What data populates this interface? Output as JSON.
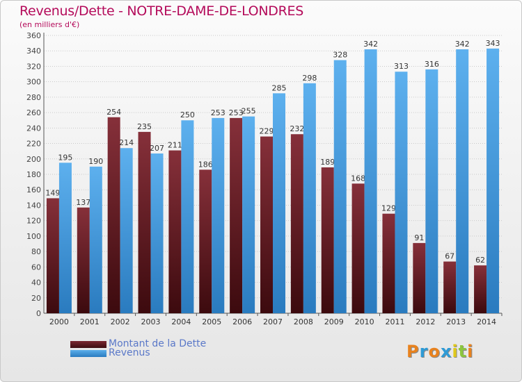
{
  "chart_data": {
    "type": "bar",
    "title": "Revenus/Dette - NOTRE-DAME-DE-LONDRES",
    "subtitle": "(en milliers d'€)",
    "categories": [
      "2000",
      "2001",
      "2002",
      "2003",
      "2004",
      "2005",
      "2006",
      "2007",
      "2008",
      "2009",
      "2010",
      "2011",
      "2012",
      "2013",
      "2014"
    ],
    "series": [
      {
        "name": "Montant de la Dette",
        "color": "#6e1e26",
        "values": [
          149,
          137,
          254,
          235,
          211,
          186,
          253,
          229,
          232,
          189,
          168,
          129,
          91,
          67,
          62
        ]
      },
      {
        "name": "Revenus",
        "color": "#4da3e6",
        "values": [
          195,
          190,
          214,
          207,
          250,
          253,
          255,
          285,
          298,
          328,
          342,
          313,
          316,
          342,
          343
        ]
      }
    ],
    "ylim": [
      0,
      360
    ],
    "ytick_step": 20,
    "grid": true,
    "legend_position": "bottom-left"
  },
  "logo": {
    "letters": [
      "P",
      "r",
      "o",
      "x",
      "i",
      "t",
      "i"
    ],
    "colors": [
      "#e8821e",
      "#2f9bd6",
      "#e8821e",
      "#2f9bd6",
      "#e0c81a",
      "#8cc63f",
      "#e8821e"
    ]
  },
  "colors": {
    "title": "#b40a5a",
    "legend_text": "#5a78c8"
  }
}
